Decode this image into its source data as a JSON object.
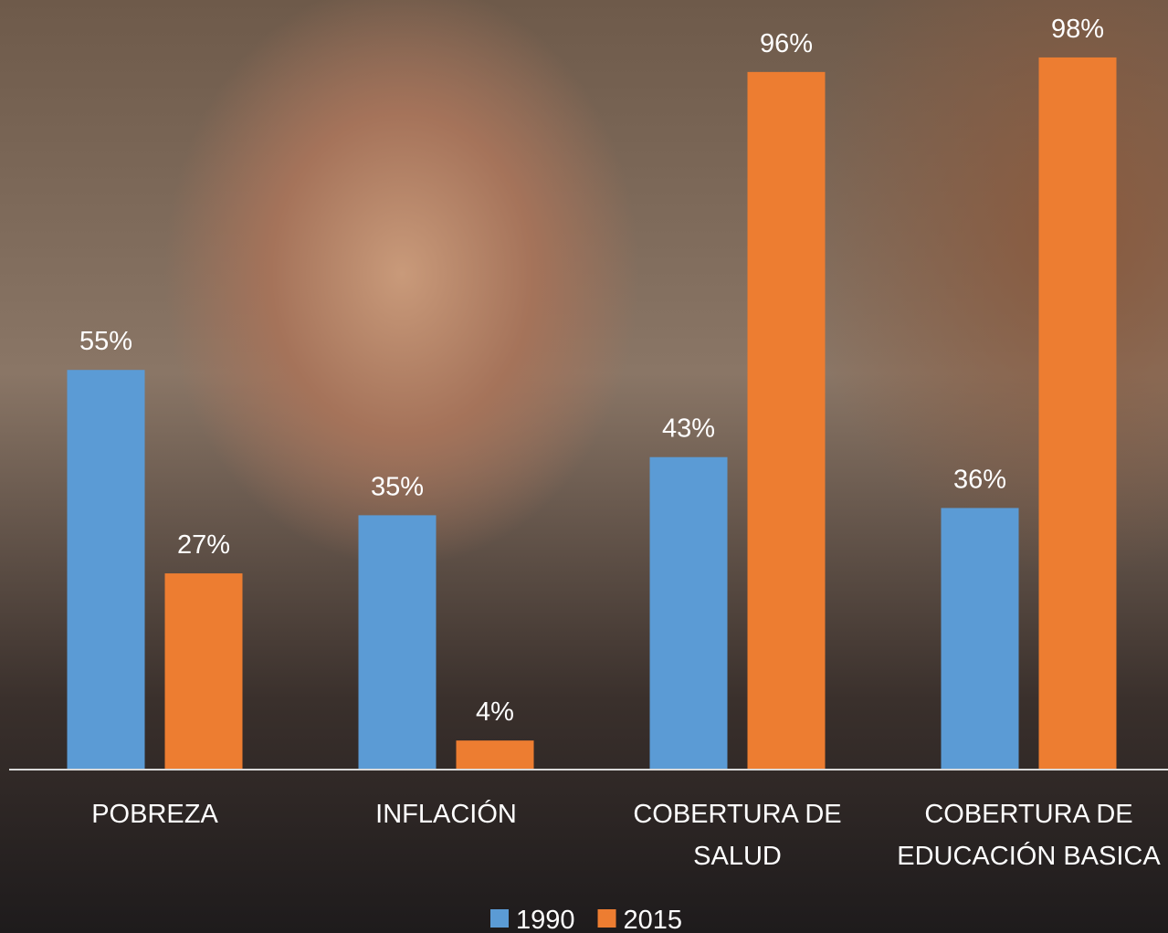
{
  "chart_data": {
    "type": "bar",
    "categories": [
      "POBREZA",
      "INFLACIÓN",
      "COBERTURA DE SALUD",
      "COBERTURA DE EDUCACIÓN BASICA"
    ],
    "series": [
      {
        "name": "1990",
        "color": "#5b9bd5",
        "values": [
          55,
          35,
          43,
          36
        ],
        "value_labels": [
          "55%",
          "35%",
          "43%",
          "36%"
        ]
      },
      {
        "name": "2015",
        "color": "#ed7d31",
        "values": [
          27,
          4,
          96,
          98
        ],
        "value_labels": [
          "27%",
          "4%",
          "96%",
          "98%"
        ]
      }
    ],
    "ylim": [
      0,
      100
    ],
    "legend": "bottom"
  }
}
